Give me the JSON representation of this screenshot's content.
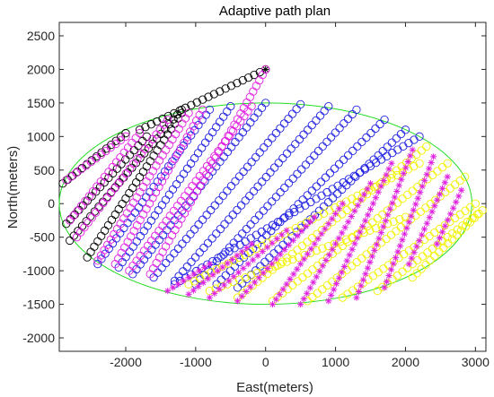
{
  "chart_data": {
    "type": "scatter",
    "title": "Adaptive path plan",
    "xlabel": "East(meters)",
    "ylabel": "North(meters)",
    "xlim": [
      -2950,
      3150
    ],
    "ylim": [
      -2200,
      2700
    ],
    "xticks": [
      -2000,
      -1000,
      0,
      1000,
      2000,
      3000
    ],
    "xtick_labels": [
      "-2000",
      "-1000",
      "0",
      "1000",
      "2000",
      "3000"
    ],
    "yticks": [
      -2000,
      -1500,
      -1000,
      -500,
      0,
      500,
      1000,
      1500,
      2000,
      2500
    ],
    "ytick_labels": [
      "-2000",
      "-1500",
      "-1000",
      "-500",
      "0",
      "500",
      "1000",
      "1500",
      "2000",
      "2500"
    ],
    "grid": false,
    "boundary": {
      "shape": "ellipse",
      "center": [
        0,
        0
      ],
      "semi_axes": [
        2950,
        1500
      ],
      "color": "#22dd22"
    },
    "colors": {
      "black": "#000000",
      "blue": "#1f1fe0",
      "magenta": "#e020e0",
      "yellow": "#f2f200",
      "boundary": "#22dd22",
      "axes": "#262626"
    },
    "series": [
      {
        "marker": "circle",
        "color": "#000000",
        "paths": [
          {
            "from": [
              -2900,
              300
            ],
            "to": [
              -2000,
              1050
            ]
          },
          {
            "from": [
              -2850,
              -300
            ],
            "to": [
              -1700,
              1000
            ]
          },
          {
            "from": [
              -2800,
              -550
            ],
            "to": [
              -1200,
              1400
            ]
          },
          {
            "from": [
              -2550,
              -800
            ],
            "to": [
              -1200,
              1350
            ]
          },
          {
            "from": [
              -1800,
              1100
            ],
            "to": [
              0,
              2000
            ]
          }
        ]
      },
      {
        "marker": "circle",
        "color": "#1f1fe0",
        "paths": [
          {
            "from": [
              -2400,
              -900
            ],
            "to": [
              -800,
              1400
            ]
          },
          {
            "from": [
              -2100,
              -950
            ],
            "to": [
              -500,
              1450
            ]
          },
          {
            "from": [
              -1900,
              -1050
            ],
            "to": [
              0,
              1500
            ]
          },
          {
            "from": [
              -1600,
              -1100
            ],
            "to": [
              500,
              1480
            ]
          },
          {
            "from": [
              -1300,
              -1150
            ],
            "to": [
              900,
              1450
            ]
          },
          {
            "from": [
              -1000,
              -1200
            ],
            "to": [
              1300,
              1400
            ]
          },
          {
            "from": [
              -700,
              -1200
            ],
            "to": [
              1700,
              1250
            ]
          },
          {
            "from": [
              -400,
              -1250
            ],
            "to": [
              2000,
              1100
            ]
          },
          {
            "from": [
              -1300,
              -1200
            ],
            "to": [
              2200,
              1000
            ]
          }
        ]
      },
      {
        "marker": "circle",
        "color": "#e020e0",
        "paths": [
          {
            "from": [
              -2850,
              350
            ],
            "to": [
              -2000,
              1000
            ]
          },
          {
            "from": [
              -2800,
              -250
            ],
            "to": [
              -1800,
              1050
            ]
          },
          {
            "from": [
              -2700,
              -500
            ],
            "to": [
              -1400,
              1250
            ]
          },
          {
            "from": [
              -2400,
              -850
            ],
            "to": [
              -1100,
              1350
            ]
          },
          {
            "from": [
              -2150,
              -900
            ],
            "to": [
              -900,
              1400
            ]
          },
          {
            "from": [
              -1950,
              -1000
            ],
            "to": [
              -200,
              1450
            ]
          },
          {
            "from": [
              -1650,
              -1050
            ],
            "to": [
              0,
              2000
            ]
          }
        ]
      },
      {
        "marker": "circle",
        "color": "#f2f200",
        "paths": [
          {
            "from": [
              -1100,
              -1200
            ],
            "to": [
              2200,
              600
            ]
          },
          {
            "from": [
              -800,
              -1300
            ],
            "to": [
              2000,
              -200
            ]
          },
          {
            "from": [
              -400,
              -1400
            ],
            "to": [
              2300,
              850
            ]
          },
          {
            "from": [
              100,
              -1450
            ],
            "to": [
              2600,
              600
            ]
          },
          {
            "from": [
              600,
              -1450
            ],
            "to": [
              2850,
              400
            ]
          },
          {
            "from": [
              1100,
              -1400
            ],
            "to": [
              3000,
              0
            ]
          },
          {
            "from": [
              1600,
              -1300
            ],
            "to": [
              3100,
              -100
            ]
          },
          {
            "from": [
              2100,
              -1100
            ],
            "to": [
              3050,
              -150
            ]
          }
        ]
      },
      {
        "marker": "asterisk",
        "color": "#e020e0",
        "paths": [
          {
            "from": [
              -1400,
              -1300
            ],
            "to": [
              -800,
              -900
            ]
          },
          {
            "from": [
              -1100,
              -1350
            ],
            "to": [
              -200,
              -600
            ]
          },
          {
            "from": [
              -800,
              -1400
            ],
            "to": [
              300,
              -400
            ]
          },
          {
            "from": [
              -400,
              -1450
            ],
            "to": [
              700,
              -200
            ]
          },
          {
            "from": [
              100,
              -1500
            ],
            "to": [
              1100,
              0
            ]
          },
          {
            "from": [
              500,
              -1500
            ],
            "to": [
              1500,
              300
            ]
          },
          {
            "from": [
              900,
              -1450
            ],
            "to": [
              1800,
              600
            ]
          },
          {
            "from": [
              1300,
              -1400
            ],
            "to": [
              2100,
              800
            ]
          },
          {
            "from": [
              1700,
              -1250
            ],
            "to": [
              2400,
              700
            ]
          },
          {
            "from": [
              2050,
              -900
            ],
            "to": [
              2600,
              400
            ]
          },
          {
            "from": [
              2450,
              -600
            ],
            "to": [
              2800,
              200
            ]
          }
        ]
      },
      {
        "marker": "asterisk",
        "color": "#000000",
        "paths": [
          {
            "from": [
              0,
              2000
            ],
            "to": [
              0,
              2000
            ]
          }
        ]
      }
    ]
  }
}
